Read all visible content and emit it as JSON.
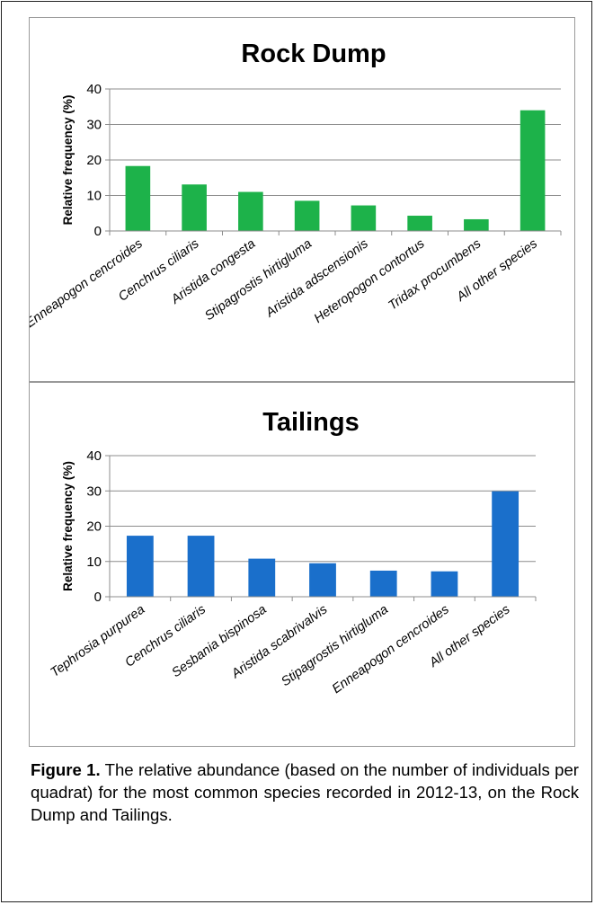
{
  "chart_data": [
    {
      "type": "bar",
      "title": "Rock Dump",
      "ylabel": "Relative frequency (%)",
      "xlabel": "",
      "ylim": [
        0,
        40
      ],
      "yticks": [
        0,
        10,
        20,
        30,
        40
      ],
      "grid": true,
      "color": "#1db24a",
      "categories": [
        "Enneapogon cencroides",
        "Cenchrus ciliaris",
        "Aristida congesta",
        "Stipagrostis hirtigluma",
        "Aristida adscensionis",
        "Heteropogon contortus",
        "Tridax procumbens",
        "All other species"
      ],
      "values": [
        18.3,
        13.1,
        11.0,
        8.5,
        7.2,
        4.3,
        3.3,
        34.0
      ]
    },
    {
      "type": "bar",
      "title": "Tailings",
      "ylabel": "Relative frequency (%)",
      "xlabel": "",
      "ylim": [
        0,
        40
      ],
      "yticks": [
        0,
        10,
        20,
        30,
        40
      ],
      "grid": true,
      "color": "#1a6fcb",
      "categories": [
        "Tephrosia purpurea",
        "Cenchrus ciliaris",
        "Sesbania bispinosa",
        "Aristida scabrivalvis",
        "Stipagrostis hirtigluma",
        "Enneapogon cencroides",
        "All other species"
      ],
      "values": [
        17.3,
        17.3,
        10.8,
        9.5,
        7.4,
        7.2,
        29.9
      ]
    }
  ],
  "caption": {
    "label": "Figure 1.",
    "text": " The relative abundance (based on the number of individuals per quadrat) for the most common species recorded in 2012-13, on the Rock Dump and Tailings."
  }
}
